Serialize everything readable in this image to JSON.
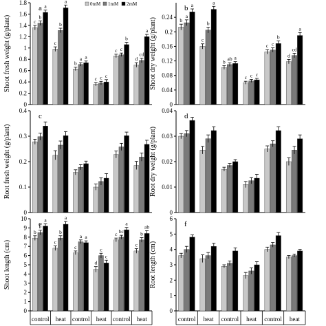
{
  "legend": {
    "entries": [
      "0mM",
      "1mM",
      "2mM"
    ],
    "colors": [
      "#c8c8c8",
      "#7a7a7a",
      "#000000"
    ]
  },
  "x_groups": {
    "treatments": [
      "control",
      "heat",
      "control",
      "heat",
      "control",
      "heat"
    ]
  },
  "chart_data": [
    {
      "type": "bar",
      "panel": "a",
      "ylabel": "Shoot fresh weight (g/plant)",
      "ylim": [
        0,
        1.8
      ],
      "yticks": [
        "0",
        "0.2",
        "0.4",
        "0.6",
        "0.8",
        "1",
        "1.2",
        "1.4",
        "1.6",
        "1.8"
      ],
      "ytick_values": [
        0,
        0.2,
        0.4,
        0.6,
        0.8,
        1.0,
        1.2,
        1.4,
        1.6,
        1.8
      ],
      "categories": [
        "control",
        "heat",
        "control",
        "heat",
        "control",
        "heat"
      ],
      "series": [
        {
          "name": "0mM",
          "values": [
            1.36,
            0.98,
            0.63,
            0.36,
            0.86,
            0.7
          ],
          "errors": [
            0.04,
            0.04,
            0.03,
            0.03,
            0.03,
            0.04
          ],
          "letters": [
            "c",
            "c",
            "b",
            "c",
            "c",
            "d"
          ]
        },
        {
          "name": "1mM",
          "values": [
            1.44,
            1.31,
            0.71,
            0.38,
            0.88,
            0.78
          ],
          "errors": [
            0.04,
            0.04,
            0.03,
            0.03,
            0.03,
            0.04
          ],
          "letters": [
            "b",
            "b",
            "a",
            "c",
            "c",
            "cd"
          ]
        },
        {
          "name": "2mM",
          "values": [
            1.63,
            1.71,
            0.74,
            0.4,
            1.06,
            1.2
          ],
          "errors": [
            0.04,
            0.05,
            0.03,
            0.04,
            0.04,
            0.04
          ],
          "letters": [
            "a",
            "a",
            "a",
            "c",
            "b",
            "a"
          ]
        }
      ]
    },
    {
      "type": "bar",
      "panel": "b",
      "ylabel": "Shoot dry weight (g/plant)",
      "ylim": [
        0,
        0.28
      ],
      "yticks": [
        "0",
        "0.04",
        "0.08",
        "0.12",
        "0.16",
        "0.2",
        "0.24"
      ],
      "ytick_values": [
        0,
        0.04,
        0.08,
        0.12,
        0.16,
        0.2,
        0.24
      ],
      "categories": [
        "control",
        "heat",
        "control",
        "heat",
        "control",
        "heat"
      ],
      "series": [
        {
          "name": "0mM",
          "values": [
            0.213,
            0.16,
            0.102,
            0.06,
            0.145,
            0.118
          ],
          "errors": [
            0.008,
            0.007,
            0.005,
            0.004,
            0.006,
            0.006
          ],
          "letters": [
            "b",
            "c",
            "b",
            "c",
            "c",
            "d"
          ]
        },
        {
          "name": "1mM",
          "values": [
            0.225,
            0.205,
            0.11,
            0.065,
            0.15,
            0.135
          ],
          "errors": [
            0.008,
            0.008,
            0.005,
            0.004,
            0.006,
            0.006
          ],
          "letters": [
            "a",
            "b",
            "ab",
            "c",
            "c",
            "cd"
          ]
        },
        {
          "name": "2mM",
          "values": [
            0.255,
            0.262,
            0.113,
            0.068,
            0.168,
            0.19
          ],
          "errors": [
            0.008,
            0.008,
            0.005,
            0.004,
            0.007,
            0.008
          ],
          "letters": [
            "a",
            "a",
            "a",
            "c",
            "b",
            "a"
          ]
        }
      ]
    },
    {
      "type": "bar",
      "panel": "c",
      "ylabel": "Root fresh weight (g/plant)",
      "ylim": [
        0,
        0.4
      ],
      "yticks": [
        "0",
        "0.1",
        "0.2",
        "0.3",
        "0.4"
      ],
      "ytick_values": [
        0,
        0.1,
        0.2,
        0.3,
        0.4
      ],
      "categories": [
        "control",
        "heat",
        "control",
        "heat",
        "control",
        "heat"
      ],
      "series": [
        {
          "name": "0mM",
          "values": [
            0.278,
            0.225,
            0.158,
            0.1,
            0.228,
            0.185
          ],
          "errors": [
            0.01,
            0.018,
            0.01,
            0.012,
            0.014,
            0.016
          ],
          "letters": [
            "",
            "",
            "",
            "",
            "",
            ""
          ]
        },
        {
          "name": "1mM",
          "values": [
            0.298,
            0.265,
            0.178,
            0.122,
            0.258,
            0.218
          ],
          "errors": [
            0.014,
            0.016,
            0.01,
            0.014,
            0.014,
            0.016
          ],
          "letters": [
            "",
            "",
            "",
            "",
            "",
            ""
          ]
        },
        {
          "name": "2mM",
          "values": [
            0.34,
            0.302,
            0.192,
            0.135,
            0.302,
            0.268
          ],
          "errors": [
            0.016,
            0.016,
            0.01,
            0.018,
            0.014,
            0.016
          ],
          "letters": [
            "",
            "",
            "",
            "",
            "",
            ""
          ]
        }
      ]
    },
    {
      "type": "bar",
      "panel": "d",
      "ylabel": "Root dry weight (g/plant)",
      "ylim": [
        0,
        0.04
      ],
      "yticks": [
        "0",
        "0.01",
        "0.02",
        "0.03",
        "0.04"
      ],
      "ytick_values": [
        0,
        0.01,
        0.02,
        0.03,
        0.04
      ],
      "categories": [
        "control",
        "heat",
        "control",
        "heat",
        "control",
        "heat"
      ],
      "series": [
        {
          "name": "0mM",
          "values": [
            0.03,
            0.0245,
            0.017,
            0.011,
            0.025,
            0.02
          ],
          "errors": [
            0.001,
            0.0015,
            0.0008,
            0.0012,
            0.0012,
            0.0015
          ],
          "letters": [
            "",
            "",
            "",
            "",
            "",
            ""
          ]
        },
        {
          "name": "1mM",
          "values": [
            0.031,
            0.029,
            0.0185,
            0.0125,
            0.027,
            0.0245
          ],
          "errors": [
            0.0012,
            0.0015,
            0.0008,
            0.0012,
            0.0012,
            0.0015
          ],
          "letters": [
            "",
            "",
            "",
            "",
            "",
            ""
          ]
        },
        {
          "name": "2mM",
          "values": [
            0.0362,
            0.0322,
            0.02,
            0.0135,
            0.0322,
            0.029
          ],
          "errors": [
            0.0012,
            0.0015,
            0.0008,
            0.0015,
            0.0015,
            0.0015
          ],
          "letters": [
            "",
            "",
            "",
            "",
            "",
            ""
          ]
        }
      ]
    },
    {
      "type": "bar",
      "panel": "e",
      "ylabel": "Shoot length (cm)",
      "ylim": [
        0,
        10
      ],
      "yticks": [
        "0",
        "1",
        "2",
        "3",
        "4",
        "5",
        "6",
        "7",
        "8",
        "9",
        "10"
      ],
      "ytick_values": [
        0,
        1,
        2,
        3,
        4,
        5,
        6,
        7,
        8,
        9,
        10
      ],
      "categories": [
        "control",
        "heat",
        "control",
        "heat",
        "control",
        "heat"
      ],
      "series": [
        {
          "name": "0mM",
          "values": [
            7.9,
            6.8,
            6.3,
            4.5,
            7.7,
            6.5
          ],
          "errors": [
            0.25,
            0.25,
            0.2,
            0.3,
            0.2,
            0.25
          ],
          "letters": [
            "b",
            "c",
            "c",
            "d",
            "c",
            "c"
          ]
        },
        {
          "name": "1mM",
          "values": [
            8.5,
            7.9,
            7.5,
            6.0,
            8.0,
            7.7
          ],
          "errors": [
            0.25,
            0.25,
            0.2,
            0.25,
            0.2,
            0.25
          ],
          "letters": [
            "b",
            "b",
            "a",
            "c",
            "bc",
            "b"
          ]
        },
        {
          "name": "2mM",
          "values": [
            9.2,
            9.4,
            7.4,
            5.2,
            8.8,
            8.4
          ],
          "errors": [
            0.25,
            0.3,
            0.2,
            0.3,
            0.25,
            0.3
          ],
          "letters": [
            "a",
            "a",
            "a",
            "c",
            "a",
            "ab"
          ]
        }
      ]
    },
    {
      "type": "bar",
      "panel": "f",
      "ylabel": "Root length (cm)",
      "ylim": [
        0,
        6
      ],
      "yticks": [
        "0",
        "1",
        "2",
        "3",
        "4",
        "5",
        "6"
      ],
      "ytick_values": [
        0,
        1,
        2,
        3,
        4,
        5,
        6
      ],
      "categories": [
        "control",
        "heat",
        "control",
        "heat",
        "control",
        "heat"
      ],
      "series": [
        {
          "name": "0mM",
          "values": [
            3.6,
            3.4,
            2.9,
            2.3,
            4.0,
            3.5
          ],
          "errors": [
            0.15,
            0.25,
            0.1,
            0.2,
            0.15,
            0.1
          ],
          "letters": [
            "",
            "",
            "",
            "",
            "",
            ""
          ]
        },
        {
          "name": "1mM",
          "values": [
            4.0,
            3.6,
            3.1,
            2.6,
            4.3,
            3.6
          ],
          "errors": [
            0.2,
            0.2,
            0.15,
            0.2,
            0.15,
            0.1
          ],
          "letters": [
            "",
            "",
            "",
            "",
            "",
            ""
          ]
        },
        {
          "name": "2mM",
          "values": [
            4.8,
            4.2,
            3.9,
            3.0,
            4.9,
            3.9
          ],
          "errors": [
            0.15,
            0.2,
            0.2,
            0.2,
            0.2,
            0.1
          ],
          "letters": [
            "",
            "",
            "",
            "",
            "",
            ""
          ]
        }
      ]
    }
  ]
}
